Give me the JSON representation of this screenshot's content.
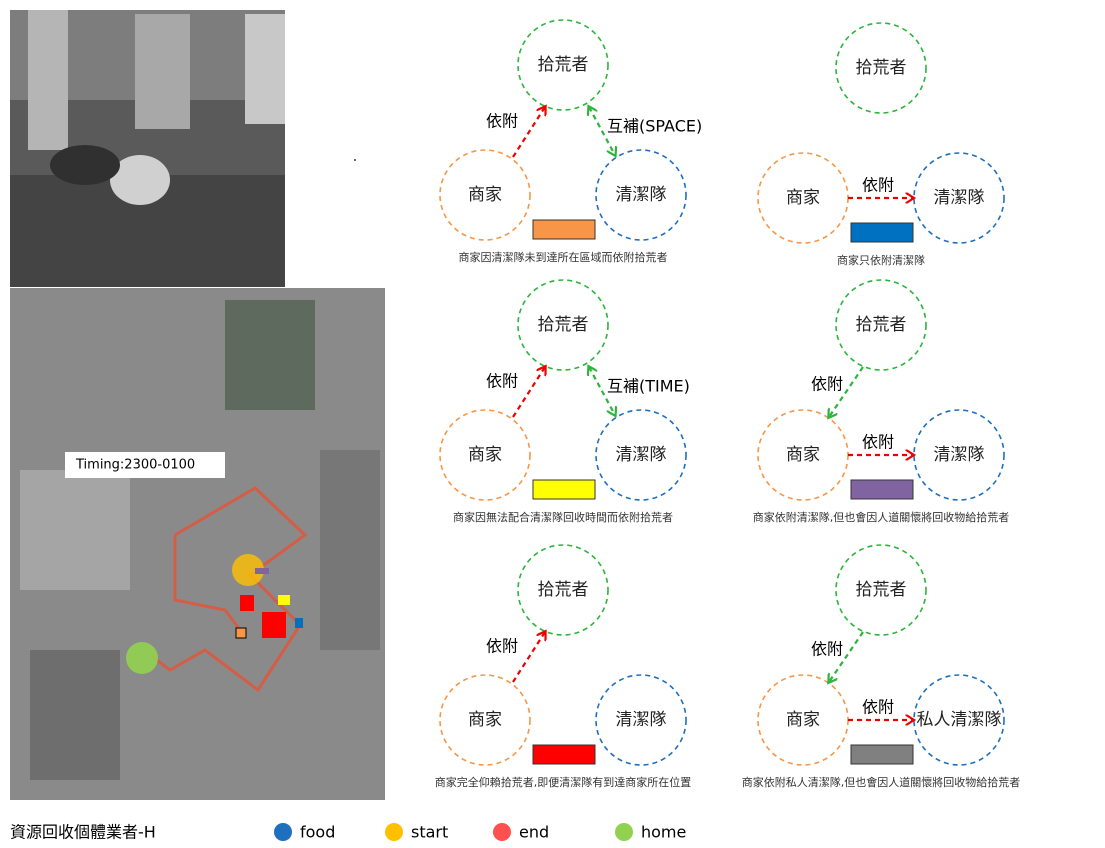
{
  "map_label": "Timing:2300-0100",
  "panels": [
    {
      "nodes": [
        "拾荒者",
        "商家",
        "清潔隊"
      ],
      "relations": [
        "依附",
        "互補(SPACE)"
      ],
      "color": "#f79646",
      "caption": "商家因清潔隊未到達所在區域而依附拾荒者"
    },
    {
      "nodes": [
        "拾荒者",
        "商家",
        "清潔隊"
      ],
      "relations": [
        "依附"
      ],
      "color": "#0070c0",
      "caption": "商家只依附清潔隊"
    },
    {
      "nodes": [
        "拾荒者",
        "商家",
        "清潔隊"
      ],
      "relations": [
        "依附",
        "互補(TIME)"
      ],
      "color": "#ffff00",
      "caption": "商家因無法配合清潔隊回收時間而依附拾荒者"
    },
    {
      "nodes": [
        "拾荒者",
        "商家",
        "清潔隊"
      ],
      "relations": [
        "依附",
        "依附"
      ],
      "color": "#8064a2",
      "caption": "商家依附清潔隊,但也會因人道關懷將回收物給拾荒者"
    },
    {
      "nodes": [
        "拾荒者",
        "商家",
        "清潔隊"
      ],
      "relations": [
        "依附"
      ],
      "color": "#ff0000",
      "caption": "商家完全仰賴拾荒者,即便清潔隊有到達商家所在位置"
    },
    {
      "nodes": [
        "拾荒者",
        "商家",
        "私人清潔隊"
      ],
      "relations": [
        "依附",
        "依附"
      ],
      "color": "#808080",
      "caption": "商家依附私人清潔隊,但也會因人道關懷將回收物給拾荒者"
    }
  ],
  "legend": {
    "title": "資源回收個體業者-H",
    "items": [
      {
        "label": "food",
        "color": "#1f6fbf"
      },
      {
        "label": "start",
        "color": "#ffc000"
      },
      {
        "label": "end",
        "color": "#ff5050"
      },
      {
        "label": "home",
        "color": "#92d050"
      }
    ]
  }
}
